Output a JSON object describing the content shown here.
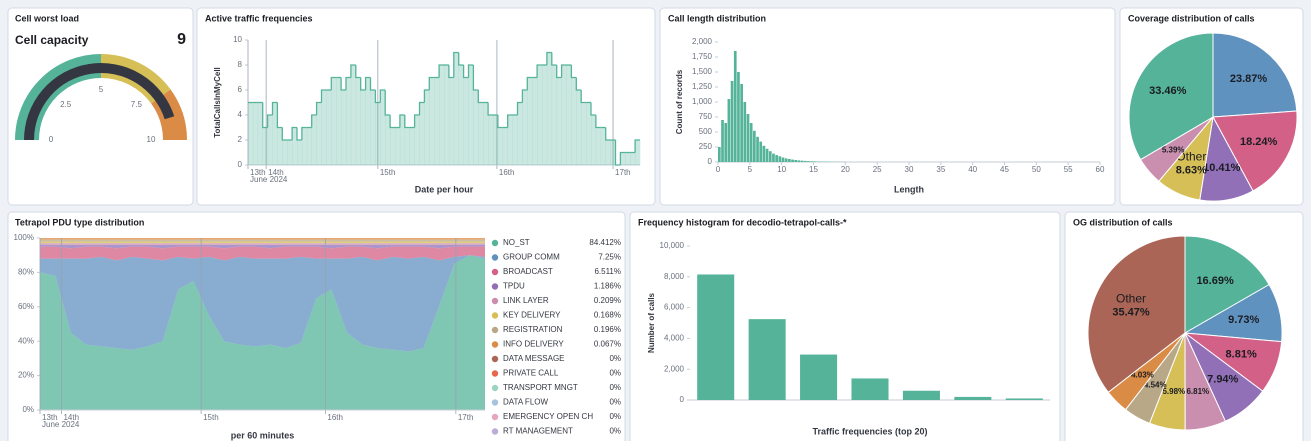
{
  "chart_data": [
    {
      "type": "gauge",
      "title": "Cell worst load",
      "label": "Cell capacity",
      "value": 9,
      "range": [
        0,
        10
      ],
      "ticks": [
        0,
        2.5,
        5,
        7.5,
        10
      ],
      "color": "#343741",
      "bands": [
        {
          "from": 0,
          "to": 5,
          "color": "#54b399"
        },
        {
          "from": 5,
          "to": 8,
          "color": "#d6bf57"
        },
        {
          "from": 8,
          "to": 10,
          "color": "#da8b45"
        }
      ]
    },
    {
      "type": "area",
      "step": true,
      "title": "Active traffic frequencies",
      "ylabel": "TotalCallsInMyCell",
      "xlabel": "Date per hour",
      "x": [
        0,
        1,
        2,
        3,
        4,
        5,
        6,
        7,
        8,
        9,
        10,
        11,
        12,
        13,
        14,
        15,
        16,
        17,
        18,
        19,
        20,
        21,
        22,
        23,
        24,
        25,
        26,
        27,
        28,
        29,
        30,
        31,
        32,
        33,
        34,
        35,
        36,
        37,
        38,
        39,
        40,
        41,
        42,
        43,
        44,
        45,
        46,
        47,
        48,
        49,
        50,
        51,
        52,
        53,
        54,
        55,
        56,
        57,
        58,
        59,
        60,
        61,
        62,
        63,
        64,
        65,
        66,
        67,
        68,
        69,
        70,
        71,
        72,
        73,
        74,
        75,
        76,
        77,
        78,
        79
      ],
      "values": [
        5,
        5,
        5,
        3,
        4,
        5,
        3,
        2,
        2,
        3,
        2,
        3,
        3,
        4,
        5,
        6,
        6,
        7,
        7,
        6,
        7,
        8,
        7,
        6,
        7,
        6,
        5,
        6,
        4,
        3,
        3,
        4,
        3,
        3,
        4,
        5,
        6,
        7,
        7,
        8,
        8,
        7,
        9,
        8,
        7,
        8,
        6,
        5,
        5,
        4,
        4,
        3,
        3,
        4,
        4,
        5,
        6,
        7,
        7,
        8,
        8,
        9,
        8,
        7,
        8,
        8,
        7,
        6,
        5,
        5,
        4,
        3,
        3,
        2,
        2,
        0,
        1,
        1,
        1,
        2
      ],
      "color": "#54b399",
      "xlim": [
        0,
        80
      ],
      "ylim": [
        0,
        10
      ],
      "yticks": [
        0,
        2,
        4,
        6,
        8,
        10
      ],
      "xticks": [
        {
          "value": 0,
          "label": "13th"
        },
        {
          "value": 3.7,
          "label": "14th"
        },
        {
          "value": 26.5,
          "label": "15th"
        },
        {
          "value": 50.8,
          "label": "16th"
        },
        {
          "value": 74.5,
          "label": "17th"
        }
      ],
      "xtick_note": "June 2024"
    },
    {
      "type": "histogram",
      "title": "Call length distribution",
      "ylabel": "Count of records",
      "xlabel": "Length",
      "bins": [
        0,
        0.5,
        1,
        1.5,
        2,
        2.5,
        3,
        3.5,
        4,
        4.5,
        5,
        5.5,
        6,
        6.5,
        7,
        7.5,
        8,
        8.5,
        9,
        9.5,
        10,
        10.5,
        11,
        11.5,
        12,
        12.5,
        13,
        13.5,
        14,
        14.5,
        15,
        15.5,
        16,
        16.5,
        17,
        17.5,
        18,
        18.5,
        19,
        19.5,
        20
      ],
      "values": [
        250,
        700,
        650,
        1050,
        1350,
        1850,
        1500,
        1300,
        1000,
        800,
        650,
        520,
        420,
        340,
        270,
        220,
        180,
        140,
        115,
        95,
        75,
        60,
        50,
        40,
        33,
        27,
        22,
        18,
        15,
        12,
        10,
        8,
        7,
        6,
        5,
        4,
        4,
        3,
        3,
        2
      ],
      "color": "#54b399",
      "xlim": [
        0,
        60
      ],
      "ylim": [
        0,
        2000
      ],
      "yticks": [
        0,
        250,
        500,
        750,
        {
          "value": 1000,
          "label": "1,000"
        },
        {
          "value": 1250,
          "label": "1,250"
        },
        {
          "value": 1500,
          "label": "1,500"
        },
        {
          "value": 1750,
          "label": "1,750"
        },
        {
          "value": 2000,
          "label": "2,000"
        }
      ],
      "xticks": [
        0,
        5,
        10,
        15,
        20,
        25,
        30,
        35,
        40,
        45,
        50,
        55,
        60
      ]
    },
    {
      "type": "pie",
      "title": "Coverage distribution of calls",
      "categories": [
        null,
        null,
        null,
        "Other",
        null,
        null
      ],
      "values": [
        23.87,
        18.24,
        10.41,
        8.63,
        5.39,
        33.46
      ],
      "value_labels": [
        "23.87%",
        "18.24%",
        "10.41%",
        "8.63%",
        "5.39%",
        "33.46%"
      ],
      "colors": [
        "#6092c0",
        "#d36086",
        "#9170b8",
        "#d6bf57",
        "#ca8eae",
        "#54b399"
      ]
    },
    {
      "type": "stacked_area",
      "title": "Tetrapol PDU type distribution",
      "xlabel": "per 60 minutes",
      "x": [
        0,
        1,
        2,
        3,
        4,
        5,
        6,
        7,
        8,
        9,
        10,
        11,
        12,
        13,
        14,
        15,
        16,
        17,
        18,
        19,
        20,
        21,
        22,
        23,
        24,
        25,
        26,
        27,
        28,
        29
      ],
      "xlim": [
        0,
        29
      ],
      "ylim": [
        0,
        100
      ],
      "yticks": [
        {
          "value": 0,
          "label": "0%"
        },
        {
          "value": 20,
          "label": "20%"
        },
        {
          "value": 40,
          "label": "40%"
        },
        {
          "value": 60,
          "label": "60%"
        },
        {
          "value": 80,
          "label": "80%"
        },
        {
          "value": 100,
          "label": "100%"
        }
      ],
      "xticks": [
        {
          "value": 0,
          "label": "13th"
        },
        {
          "value": 1.4,
          "label": "14th"
        },
        {
          "value": 10.5,
          "label": "15th"
        },
        {
          "value": 18.6,
          "label": "16th"
        },
        {
          "value": 27.1,
          "label": "17th"
        }
      ],
      "xtick_note": "June 2024",
      "series": [
        {
          "name": "NO_ST",
          "color": "#54b399",
          "values": [
            80,
            78,
            45,
            38,
            37,
            36,
            35,
            37,
            40,
            70,
            75,
            55,
            40,
            38,
            37,
            38,
            36,
            39,
            65,
            70,
            45,
            38,
            36,
            35,
            34,
            36,
            60,
            85,
            90,
            88
          ]
        },
        {
          "name": "GROUP COMM",
          "color": "#6092c0",
          "values": [
            8,
            10,
            43,
            50,
            52,
            51,
            54,
            51,
            47,
            19,
            13,
            34,
            47,
            51,
            51,
            50,
            52,
            50,
            23,
            18,
            43,
            51,
            51,
            54,
            54,
            53,
            27,
            4,
            0,
            1
          ]
        },
        {
          "name": "BROADCAST",
          "color": "#d36086",
          "values": [
            7,
            7,
            6,
            7,
            6,
            7,
            6,
            7,
            7,
            6,
            7,
            6,
            7,
            6,
            7,
            6,
            7,
            6,
            7,
            6,
            7,
            6,
            7,
            6,
            7,
            6,
            7,
            6,
            5,
            6
          ]
        },
        {
          "name": "TPDU",
          "color": "#9170b8",
          "values": [
            1,
            1,
            2,
            1,
            1,
            2,
            1,
            1,
            2,
            1,
            1,
            1,
            2,
            1,
            1,
            2,
            1,
            1,
            1,
            2,
            1,
            1,
            2,
            1,
            1,
            1,
            2,
            1,
            1,
            1
          ]
        },
        {
          "name": "LINK LAYER",
          "color": "#ca8eae",
          "values": [
            1,
            1,
            1,
            1,
            1,
            1,
            1,
            1,
            1,
            1,
            1,
            1,
            1,
            1,
            1,
            1,
            1,
            1,
            1,
            1,
            1,
            1,
            1,
            1,
            1,
            1,
            1,
            1,
            1,
            1
          ]
        },
        {
          "name": "KEY DELIVERY",
          "color": "#d6bf57",
          "values": [
            1,
            1,
            1,
            1,
            1,
            1,
            1,
            1,
            1,
            1,
            1,
            1,
            1,
            1,
            1,
            1,
            1,
            1,
            1,
            1,
            1,
            1,
            1,
            1,
            1,
            1,
            1,
            1,
            1,
            1
          ]
        },
        {
          "name": "REGISTRATION",
          "color": "#b9a888",
          "values": [
            1,
            1,
            1,
            1,
            1,
            1,
            1,
            1,
            1,
            1,
            1,
            1,
            1,
            1,
            1,
            1,
            1,
            1,
            1,
            1,
            1,
            1,
            1,
            1,
            1,
            1,
            1,
            1,
            1,
            1
          ]
        },
        {
          "name": "INFO DELIVERY",
          "color": "#da8b45",
          "values": [
            1,
            1,
            1,
            1,
            1,
            1,
            1,
            1,
            1,
            1,
            1,
            1,
            1,
            1,
            1,
            1,
            1,
            1,
            1,
            1,
            1,
            1,
            1,
            1,
            1,
            1,
            1,
            1,
            1,
            1
          ]
        },
        {
          "name": "DATA MESSAGE",
          "color": "#aa6556",
          "values": [
            0,
            0,
            0,
            0,
            0,
            0,
            0,
            0,
            0,
            0,
            0,
            0,
            0,
            0,
            0,
            0,
            0,
            0,
            0,
            0,
            0,
            0,
            0,
            0,
            0,
            0,
            0,
            0,
            0,
            0
          ]
        },
        {
          "name": "PRIVATE CALL",
          "color": "#e7664c",
          "values": [
            0,
            0,
            0,
            0,
            0,
            0,
            0,
            0,
            0,
            0,
            0,
            0,
            0,
            0,
            0,
            0,
            0,
            0,
            0,
            0,
            0,
            0,
            0,
            0,
            0,
            0,
            0,
            0,
            0,
            0
          ]
        },
        {
          "name": "TRANSPORT MNGT",
          "color": "#9cd4c4",
          "values": [
            0,
            0,
            0,
            0,
            0,
            0,
            0,
            0,
            0,
            0,
            0,
            0,
            0,
            0,
            0,
            0,
            0,
            0,
            0,
            0,
            0,
            0,
            0,
            0,
            0,
            0,
            0,
            0,
            0,
            0
          ]
        },
        {
          "name": "DATA FLOW",
          "color": "#a8c3dd",
          "values": [
            0,
            0,
            0,
            0,
            0,
            0,
            0,
            0,
            0,
            0,
            0,
            0,
            0,
            0,
            0,
            0,
            0,
            0,
            0,
            0,
            0,
            0,
            0,
            0,
            0,
            0,
            0,
            0,
            0,
            0
          ]
        },
        {
          "name": "EMERGENCY OPEN CH",
          "color": "#e7a6bd",
          "values": [
            0,
            0,
            0,
            0,
            0,
            0,
            0,
            0,
            0,
            0,
            0,
            0,
            0,
            0,
            0,
            0,
            0,
            0,
            0,
            0,
            0,
            0,
            0,
            0,
            0,
            0,
            0,
            0,
            0,
            0
          ]
        },
        {
          "name": "RT MANAGEMENT",
          "color": "#bcacd8",
          "values": [
            0,
            0,
            0,
            0,
            0,
            0,
            0,
            0,
            0,
            0,
            0,
            0,
            0,
            0,
            0,
            0,
            0,
            0,
            0,
            0,
            0,
            0,
            0,
            0,
            0,
            0,
            0,
            0,
            0,
            0
          ]
        }
      ],
      "legend_values": [
        84.412,
        7.25,
        6.511,
        1.186,
        0.209,
        0.168,
        0.196,
        0.067,
        0,
        0,
        0,
        0,
        0,
        0
      ],
      "legend_value_labels": [
        "84.412%",
        "7.25%",
        "6.511%",
        "1.186%",
        "0.209%",
        "0.168%",
        "0.196%",
        "0.067%",
        "0%",
        "0%",
        "0%",
        "0%",
        "0%",
        "0%"
      ]
    },
    {
      "type": "bar",
      "title": "Frequency histogram for decodio-tetrapol-calls-*",
      "ylabel": "Number of calls",
      "xlabel": "Traffic frequencies (top 20)",
      "categories": [
        null,
        null,
        null,
        null,
        null,
        null,
        null
      ],
      "values": [
        8150,
        5250,
        2950,
        1400,
        600,
        200,
        100
      ],
      "color": "#54b399",
      "ylim": [
        0,
        10000
      ],
      "yticks": [
        0,
        {
          "value": 2000,
          "label": "2,000"
        },
        {
          "value": 4000,
          "label": "4,000"
        },
        {
          "value": 6000,
          "label": "6,000"
        },
        {
          "value": 8000,
          "label": "8,000"
        },
        {
          "value": 10000,
          "label": "10,000"
        }
      ]
    },
    {
      "type": "pie",
      "title": "OG distribution of calls",
      "categories": [
        null,
        null,
        null,
        null,
        null,
        null,
        null,
        null,
        "Other"
      ],
      "values": [
        16.69,
        9.73,
        8.81,
        7.94,
        6.81,
        5.98,
        4.54,
        4.03,
        35.47
      ],
      "value_labels": [
        "16.69%",
        "9.73%",
        "8.81%",
        "7.94%",
        "6.81%",
        "5.98%",
        "4.54%",
        "4.03%",
        "35.47%"
      ],
      "colors": [
        "#54b399",
        "#6092c0",
        "#d36086",
        "#9170b8",
        "#ca8eae",
        "#d6bf57",
        "#b9a888",
        "#da8b45",
        "#aa6556"
      ]
    }
  ]
}
